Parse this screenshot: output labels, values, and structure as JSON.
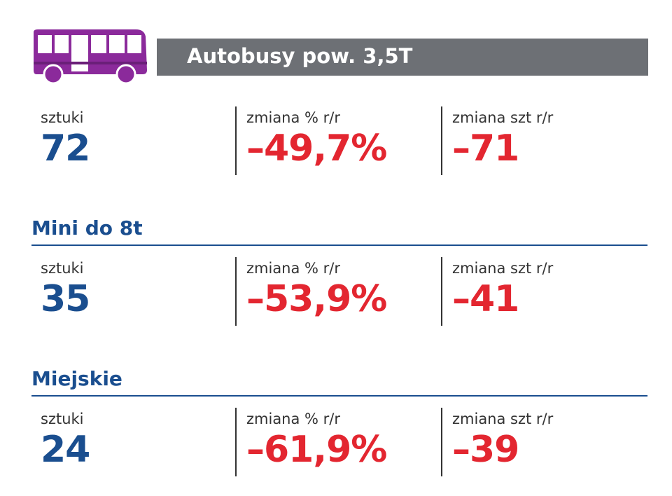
{
  "header": {
    "title": "Autobusy pow. 3,5T"
  },
  "sections": [
    {
      "stats": [
        {
          "label": "sztuki",
          "value": "72"
        },
        {
          "label": "zmiana % r/r",
          "value": "–49,7%"
        },
        {
          "label": "zmiana szt r/r",
          "value": "–71"
        }
      ]
    },
    {
      "title": "Mini do 8t",
      "stats": [
        {
          "label": "sztuki",
          "value": "35"
        },
        {
          "label": "zmiana % r/r",
          "value": "–53,9%"
        },
        {
          "label": "zmiana szt r/r",
          "value": "–41"
        }
      ]
    },
    {
      "title": "Miejskie",
      "stats": [
        {
          "label": "sztuki",
          "value": "24"
        },
        {
          "label": "zmiana % r/r",
          "value": "–61,9%"
        },
        {
          "label": "zmiana szt r/r",
          "value": "–39"
        }
      ]
    }
  ]
}
